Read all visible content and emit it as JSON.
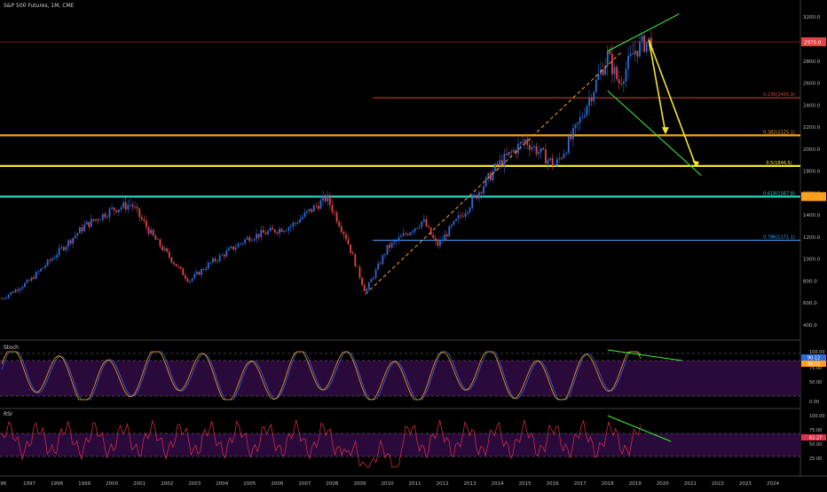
{
  "header": {
    "title": "S&P 500 Futures, 1M, CME"
  },
  "price_axis": {
    "ticks": [
      "3200.0",
      "3000.0",
      "2800.0",
      "2600.0",
      "2400.0",
      "2200.0",
      "2000.0",
      "1800.0",
      "1600.0",
      "1400.0",
      "1200.0",
      "1000.0",
      "800.0",
      "600.0",
      "400.0"
    ],
    "current_label": "2975.0",
    "current_color": "#e0443f"
  },
  "stoch": {
    "label": "Stoch",
    "ticks": [
      "100.00",
      "75.00",
      "50.00",
      "0.00"
    ],
    "tag_blue": "90.12",
    "tag_orange": "88.02"
  },
  "rsi": {
    "label": "RSI",
    "ticks": [
      "100.00",
      "75.00",
      "50.00",
      "25.00"
    ],
    "tag": "62.27"
  },
  "time_axis": [
    "996",
    "1997",
    "1998",
    "1999",
    "2000",
    "2001",
    "2002",
    "2003",
    "2004",
    "2005",
    "2006",
    "2007",
    "2008",
    "2009",
    "2010",
    "2011",
    "2012",
    "2013",
    "2014",
    "2015",
    "2016",
    "2017",
    "2018",
    "2019",
    "2020",
    "2021",
    "2022",
    "2023",
    "2024"
  ],
  "fib_levels": [
    {
      "label": "0.236(2465.9)",
      "price": 2465.9,
      "color": "#d64040"
    },
    {
      "label": "0.382(2125.1)",
      "price": 2125.1,
      "color": "#ff9f1c"
    },
    {
      "label": "0.5(1846.5)",
      "price": 1846.5,
      "color": "#f5e52a"
    },
    {
      "label": "0.618(1567.8)",
      "price": 1567.8,
      "color": "#29d3c0"
    },
    {
      "label": "0.786(1171.1)",
      "price": 1171.1,
      "color": "#3fa3ff"
    }
  ],
  "colors": {
    "up": "#2f6bd8",
    "down": "#e0443f",
    "trend": "#3cf23c",
    "arrow": "#f5e52a",
    "stoch_band": "#2a0a3a",
    "rsi_line": "#e0304a"
  },
  "chart_data": {
    "type": "candlestick",
    "title": "S&P 500 Futures, 1M, CME",
    "ylim": [
      400,
      3300
    ],
    "xlim": [
      1996,
      2025
    ],
    "series": [
      {
        "name": "S&P 500 Futures",
        "x": [
          1996,
          1997,
          1998,
          1999,
          2000,
          2000.7,
          2001.5,
          2002.8,
          2003.5,
          2005,
          2006.5,
          2007.8,
          2008.5,
          2009.2,
          2010,
          2011.3,
          2011.8,
          2013,
          2014,
          2015,
          2016.1,
          2016.8,
          2018,
          2018.4,
          2019,
          2019.4
        ],
        "y": [
          640,
          800,
          1050,
          1300,
          1450,
          1500,
          1200,
          800,
          950,
          1200,
          1300,
          1560,
          1200,
          700,
          1100,
          1350,
          1120,
          1500,
          1850,
          2080,
          1850,
          2150,
          2850,
          2600,
          2900,
          2975
        ]
      }
    ],
    "horizontal_lines": [
      2975,
      2465.9,
      2125.1,
      1846.5,
      1567.8,
      1171.1
    ]
  }
}
